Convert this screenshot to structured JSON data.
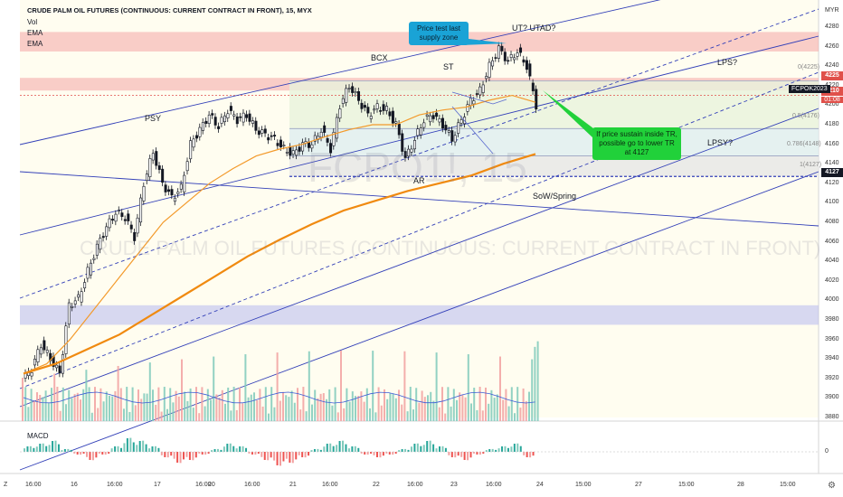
{
  "header": {
    "title": "CRUDE PALM OIL FUTURES (CONTINUOUS: CURRENT CONTRACT IN FRONT), 15, MYX",
    "vol_label": "Vol",
    "ema1_label": "EMA",
    "ema2_label": "EMA",
    "macd_label": "MACD"
  },
  "watermark": {
    "symbol": "FCPO1!, 15",
    "name": "CRUDE PALM OIL FUTURES (CONTINUOUS: CURRENT CONTRACT IN FRONT)"
  },
  "annotations": {
    "psy": "PSY",
    "bcx": "BCX",
    "st": "ST",
    "ar": "AR",
    "ut": "UT? UTAD?",
    "lps": "LPS?",
    "lpsy": "LPSY?",
    "sow": "SoW/Spring",
    "callout_blue": "Price test last supply zone",
    "callout_green": "If price sustain inside TR, possible go to lower TR at 4127"
  },
  "fib_labels": {
    "f0": "0(4225)",
    "f05": "0.5(4176)",
    "f786": "0.786(4148)",
    "f1": "1(4127)"
  },
  "price_axis": {
    "unit": "MYR",
    "ticks": [
      "4280",
      "4260",
      "4240",
      "4220",
      "4200",
      "4180",
      "4160",
      "4140",
      "4120",
      "4100",
      "4080",
      "4060",
      "4040",
      "4020",
      "4000",
      "3980",
      "3960",
      "3940",
      "3920",
      "3900",
      "3880"
    ],
    "badge_4225": "4225",
    "badge_4210": "4210",
    "badge_4127": "4127",
    "symbol_code": "FCPOK2023",
    "countdown": "01:08",
    "macd_zero": "0",
    "colors": {
      "badge_4225": "#e0504a",
      "badge_4210": "#e0504a",
      "badge_4127": "#141824"
    }
  },
  "time_axis": [
    {
      "label": "16:00"
    },
    {
      "label": "16"
    },
    {
      "label": "16:00"
    },
    {
      "label": "17"
    },
    {
      "label": "16:00"
    },
    {
      "label": "20"
    },
    {
      "label": "16:00"
    },
    {
      "label": "21"
    },
    {
      "label": "16:00"
    },
    {
      "label": "22"
    },
    {
      "label": "16:00"
    },
    {
      "label": "23"
    },
    {
      "label": "16:00"
    },
    {
      "label": "24"
    },
    {
      "label": "15:00"
    },
    {
      "label": "27"
    },
    {
      "label": "15:00"
    },
    {
      "label": "28"
    },
    {
      "label": "15:00"
    },
    {
      "label": "Z"
    }
  ],
  "chart_data": {
    "type": "candlestick",
    "interval": "15",
    "exchange": "MYX",
    "currency": "MYR",
    "ylim": [
      3875,
      4295
    ],
    "fib_levels": [
      {
        "ratio": 0,
        "price": 4225
      },
      {
        "ratio": 0.5,
        "price": 4176
      },
      {
        "ratio": 0.786,
        "price": 4148
      },
      {
        "ratio": 1,
        "price": 4127
      }
    ],
    "last_price": 4210,
    "zones": [
      {
        "from": 4255,
        "to": 4275,
        "color": "#f4a5a5"
      },
      {
        "from": 4215,
        "to": 4228,
        "color": "#f4a5a5"
      },
      {
        "from": 3975,
        "to": 3995,
        "color": "#b6baf0"
      }
    ],
    "close_path": [
      3918,
      3930,
      3955,
      3940,
      3925,
      3995,
      4002,
      4030,
      4055,
      4075,
      4090,
      4085,
      4065,
      4120,
      4152,
      4120,
      4105,
      4115,
      4160,
      4175,
      4190,
      4178,
      4195,
      4185,
      4190,
      4175,
      4170,
      4165,
      4155,
      4150,
      4160,
      4160,
      4175,
      4155,
      4200,
      4220,
      4205,
      4190,
      4198,
      4195,
      4180,
      4145,
      4165,
      4185,
      4190,
      4180,
      4165,
      4185,
      4205,
      4215,
      4240,
      4258,
      4245,
      4255,
      4240,
      4200
    ],
    "ema_fast": [
      3925,
      3935,
      3960,
      3990,
      4020,
      4050,
      4080,
      4100,
      4120,
      4135,
      4148,
      4155,
      4160,
      4168,
      4175,
      4180,
      4180,
      4190,
      4195,
      4198,
      4205,
      4210,
      4203
    ],
    "ema_slow": [
      3925,
      3935,
      3950,
      3965,
      3985,
      4005,
      4025,
      4045,
      4062,
      4078,
      4092,
      4102,
      4112,
      4120,
      4128,
      4140,
      4150
    ],
    "macd_hist": [
      2,
      3,
      4,
      1,
      -1,
      -3,
      -1,
      2,
      5,
      4,
      2,
      -2,
      -4,
      -3,
      -1,
      1,
      3,
      2,
      -1,
      -3,
      -5,
      -4,
      -2,
      1,
      3,
      4,
      2,
      -1,
      -2,
      -1,
      1,
      3,
      4,
      2,
      -2,
      -3,
      -1,
      1,
      2,
      3,
      -2
    ]
  }
}
